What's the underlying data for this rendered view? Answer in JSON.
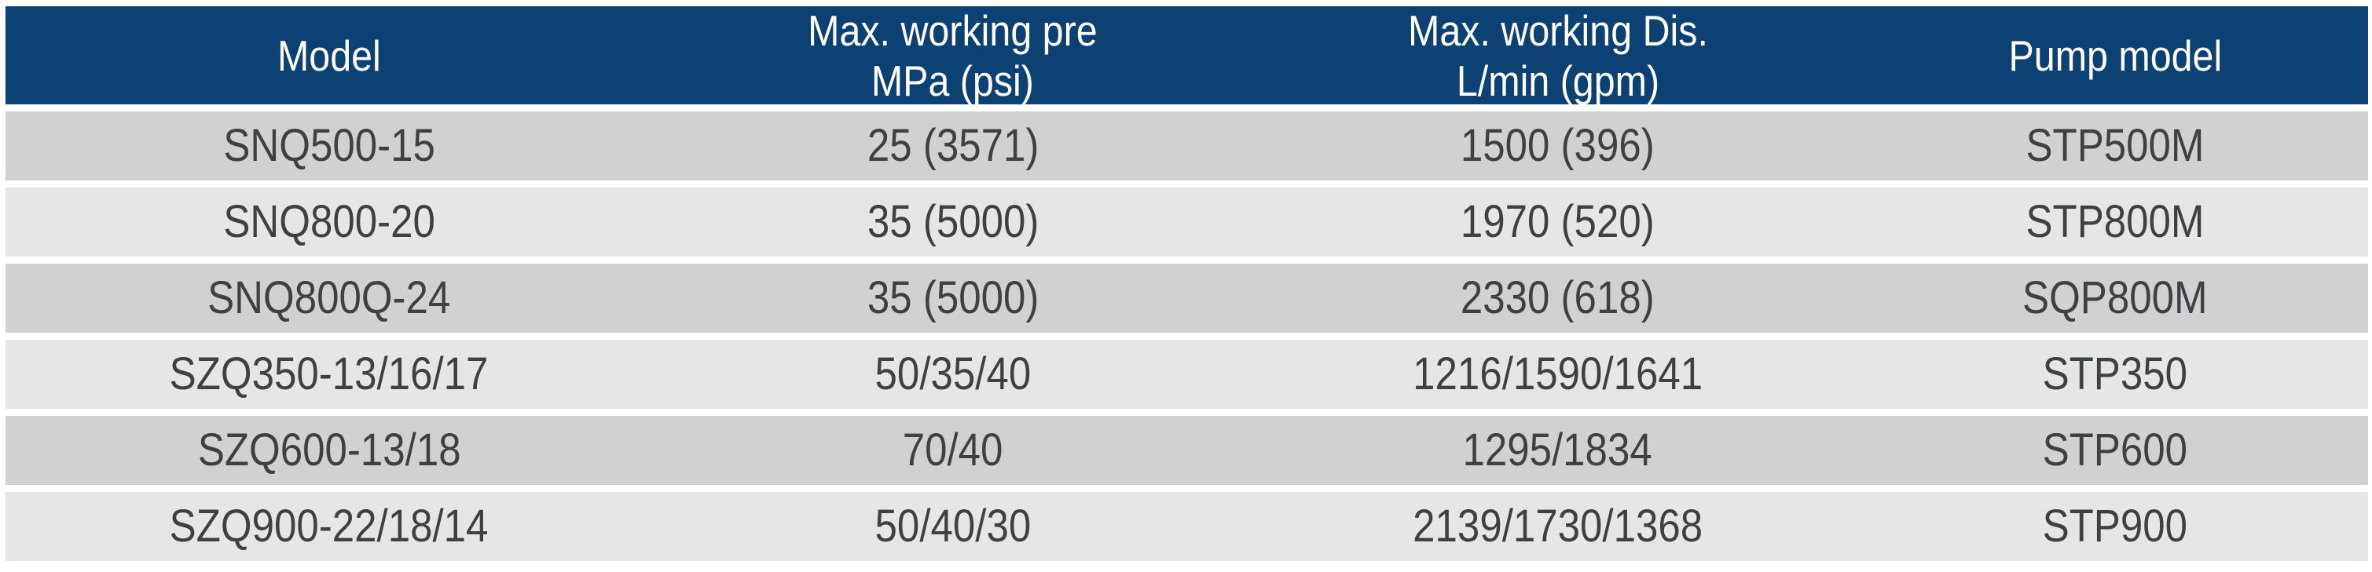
{
  "table": {
    "colors": {
      "header_bg": "#0d4073",
      "header_text": "#ffffff",
      "row_dark": "#d0d1d3",
      "row_light": "#e5e6e8",
      "cell_text": "#404042",
      "page_bg": "#ffffff"
    },
    "columns": [
      {
        "line1": "Model",
        "line2": ""
      },
      {
        "line1": "Max. working pre",
        "line2": "MPa (psi)"
      },
      {
        "line1": "Max. working Dis.",
        "line2": "L/min (gpm)"
      },
      {
        "line1": "Pump model",
        "line2": ""
      }
    ],
    "rows": [
      {
        "model": "SNQ500-15",
        "max_pressure": "25 (3571)",
        "max_discharge": "1500 (396)",
        "pump_model": "STP500M"
      },
      {
        "model": "SNQ800-20",
        "max_pressure": "35 (5000)",
        "max_discharge": "1970 (520)",
        "pump_model": "STP800M"
      },
      {
        "model": "SNQ800Q-24",
        "max_pressure": "35 (5000)",
        "max_discharge": "2330 (618)",
        "pump_model": "SQP800M"
      },
      {
        "model": "SZQ350-13/16/17",
        "max_pressure": "50/35/40",
        "max_discharge": "1216/1590/1641",
        "pump_model": "STP350"
      },
      {
        "model": "SZQ600-13/18",
        "max_pressure": "70/40",
        "max_discharge": "1295/1834",
        "pump_model": "STP600"
      },
      {
        "model": "SZQ900-22/18/14",
        "max_pressure": "50/40/30",
        "max_discharge": "2139/1730/1368",
        "pump_model": "STP900"
      }
    ]
  }
}
